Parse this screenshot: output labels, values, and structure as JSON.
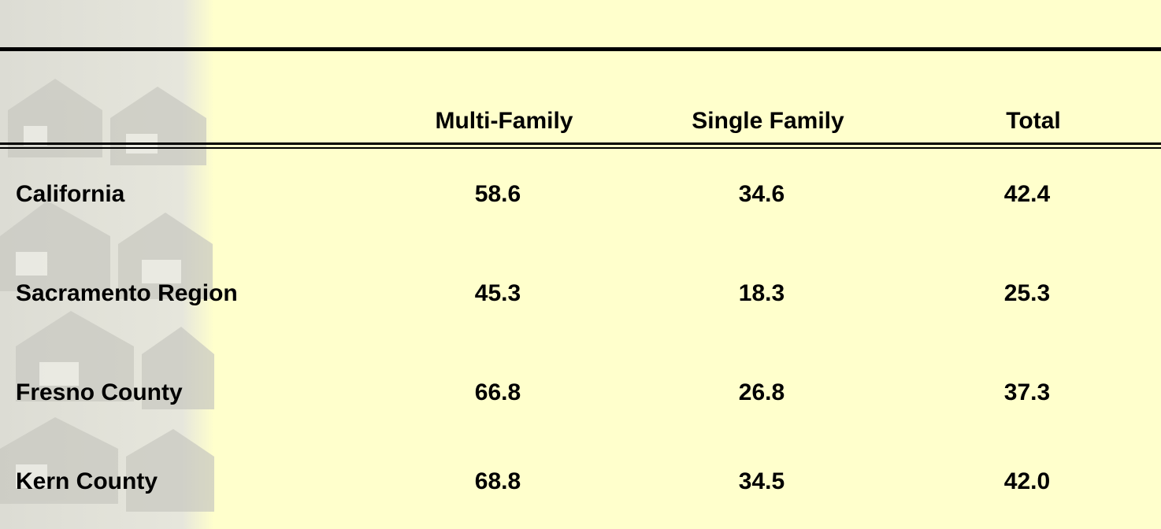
{
  "table": {
    "columns": [
      "Multi-Family",
      "Single Family",
      "Total"
    ],
    "rows": [
      {
        "label": "California",
        "values": [
          "58.6",
          "34.6",
          "42.4"
        ]
      },
      {
        "label": "Sacramento Region",
        "values": [
          "45.3",
          "18.3",
          "25.3"
        ]
      },
      {
        "label": "Fresno County",
        "values": [
          "66.8",
          "26.8",
          "37.3"
        ]
      },
      {
        "label": "Kern County",
        "values": [
          "68.8",
          "34.5",
          "42.0"
        ]
      }
    ]
  }
}
